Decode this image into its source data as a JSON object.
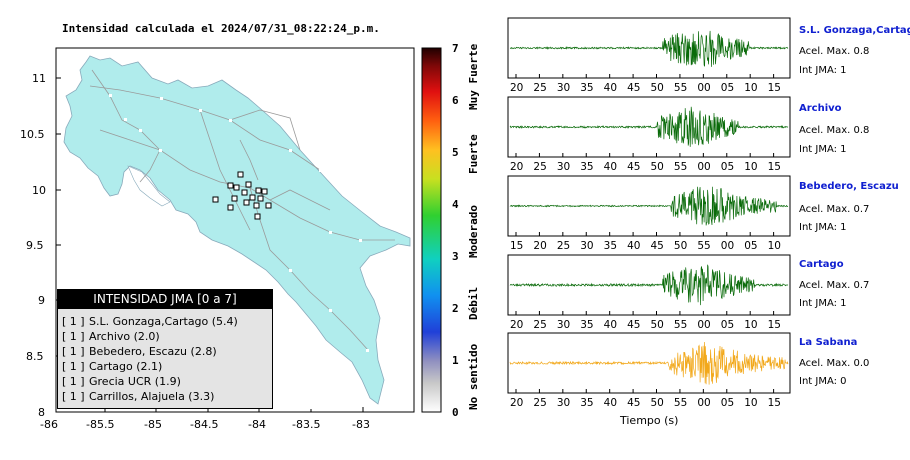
{
  "map": {
    "title": "Intensidad calculada el 2024/07/31_08:22:24_p.m.",
    "lat_ticks": [
      "11",
      "10.5",
      "10",
      "9.5",
      "9",
      "8.5",
      "8"
    ],
    "lon_ticks": [
      "-86",
      "-85.5",
      "-85",
      "-84.5",
      "-84",
      "-83.5",
      "-83"
    ],
    "land_color": "#b0ecec"
  },
  "colorbar": {
    "ticks": [
      "0",
      "1",
      "2",
      "3",
      "4",
      "5",
      "6",
      "7"
    ],
    "labels": [
      "No sentido",
      "Débil",
      "Moderado",
      "Fuerte",
      "Muy Fuerte"
    ]
  },
  "legend": {
    "header": "INTENSIDAD JMA [0 a 7]",
    "rows": [
      {
        "level": "[ 1 ]",
        "text": "S.L. Gonzaga,Cartago (5.4)"
      },
      {
        "level": "[ 1 ]",
        "text": "Archivo (2.0)"
      },
      {
        "level": "[ 1 ]",
        "text": "Bebedero, Escazu (2.8)"
      },
      {
        "level": "[ 1 ]",
        "text": "Cartago (2.1)"
      },
      {
        "level": "[ 1 ]",
        "text": "Grecia UCR (1.9)"
      },
      {
        "level": "[ 1 ]",
        "text": "Carrillos, Alajuela (3.3)"
      }
    ]
  },
  "waveforms": {
    "x_axis_label": "Tiempo (s)",
    "stations": [
      {
        "name": "S.L. Gonzaga,Cartago",
        "acel": "Acel. Max. 0.8",
        "int": "Int JMA: 1",
        "color": "#0a6b0a",
        "ticks": [
          "20",
          "25",
          "30",
          "35",
          "40",
          "45",
          "50",
          "55",
          "00",
          "05",
          "10",
          "15"
        ]
      },
      {
        "name": "Archivo",
        "acel": "Acel. Max. 0.8",
        "int": "Int JMA: 1",
        "color": "#0a6b0a",
        "ticks": [
          "20",
          "25",
          "30",
          "35",
          "40",
          "45",
          "50",
          "55",
          "00",
          "05",
          "10",
          "15"
        ]
      },
      {
        "name": "Bebedero, Escazu",
        "acel": "Acel. Max. 0.7",
        "int": "Int JMA: 1",
        "color": "#0a6b0a",
        "ticks": [
          "15",
          "20",
          "25",
          "30",
          "35",
          "40",
          "45",
          "50",
          "55",
          "00",
          "05",
          "10"
        ]
      },
      {
        "name": "Cartago",
        "acel": "Acel. Max. 0.7",
        "int": "Int JMA: 1",
        "color": "#0a6b0a",
        "ticks": [
          "20",
          "25",
          "30",
          "35",
          "40",
          "45",
          "50",
          "55",
          "00",
          "05",
          "10",
          "15"
        ]
      },
      {
        "name": "La Sabana",
        "acel": "Acel. Max. 0.0",
        "int": "Int JMA: 0",
        "color": "#f2a81a",
        "ticks": [
          "20",
          "25",
          "30",
          "35",
          "40",
          "45",
          "50",
          "55",
          "00",
          "05",
          "10",
          "15"
        ]
      }
    ]
  }
}
